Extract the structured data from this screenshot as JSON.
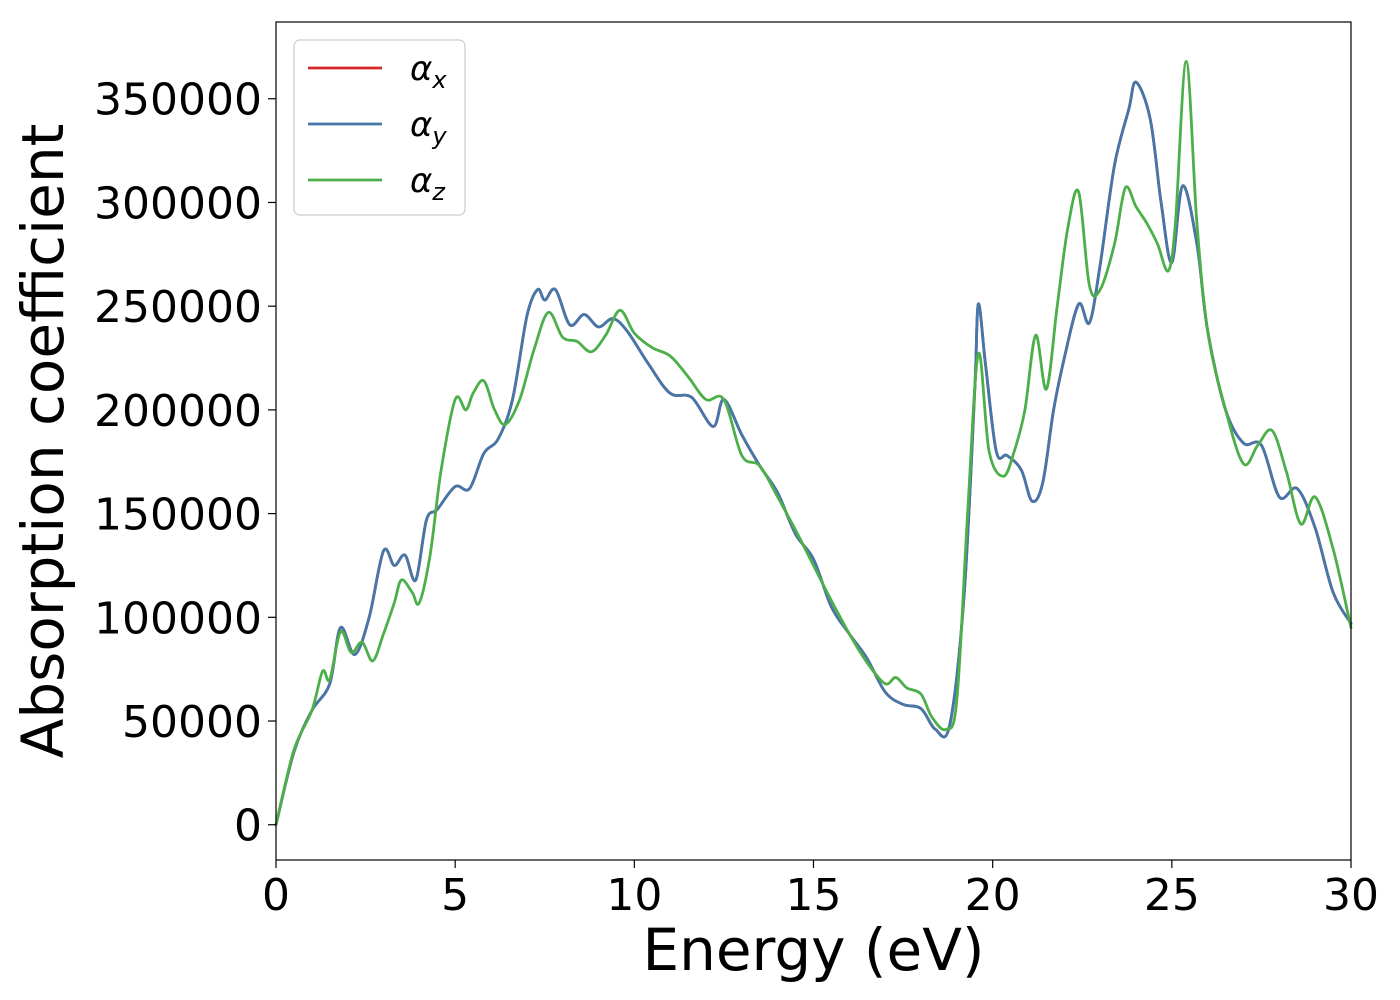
{
  "chart_data": {
    "type": "line",
    "title": "",
    "xlabel": "Energy (eV)",
    "ylabel": "Absorption coefficient",
    "xlim": [
      0,
      30
    ],
    "ylim": [
      -17000,
      387000
    ],
    "xticks": [
      0,
      5,
      10,
      15,
      20,
      25,
      30
    ],
    "yticks": [
      0,
      50000,
      100000,
      150000,
      200000,
      250000,
      300000,
      350000
    ],
    "grid": false,
    "legend": "top-left",
    "series": [
      {
        "name": "αx",
        "symbol": "α",
        "sub": "x",
        "color": "#d62728",
        "x": [
          0,
          0.5,
          1.0,
          1.5,
          1.8,
          2.2,
          2.6,
          3.0,
          3.3,
          3.6,
          3.9,
          4.2,
          4.5,
          5.0,
          5.4,
          5.8,
          6.2,
          6.6,
          7.0,
          7.3,
          7.5,
          7.8,
          8.2,
          8.6,
          9.0,
          9.4,
          9.8,
          10.4,
          11.0,
          11.6,
          12.2,
          12.5,
          13.0,
          13.5,
          14.0,
          14.5,
          15.0,
          15.5,
          16.0,
          16.5,
          17.0,
          17.5,
          18.0,
          18.4,
          18.8,
          19.2,
          19.5,
          19.6,
          19.8,
          20.1,
          20.4,
          20.8,
          21.1,
          21.4,
          21.7,
          22.0,
          22.4,
          22.7,
          23.0,
          23.4,
          23.8,
          24.0,
          24.4,
          24.7,
          25.0,
          25.3,
          25.7,
          26.0,
          26.5,
          27.0,
          27.5,
          28.0,
          28.5,
          29.0,
          29.5,
          30.0
        ],
        "values": [
          0,
          35000,
          55000,
          68000,
          95000,
          82000,
          100000,
          132000,
          125000,
          130000,
          118000,
          147000,
          152000,
          163000,
          162000,
          179000,
          186000,
          205000,
          245000,
          258000,
          253000,
          258000,
          241000,
          246000,
          240000,
          244000,
          238000,
          222000,
          208000,
          206000,
          192000,
          205000,
          188000,
          173000,
          160000,
          140000,
          128000,
          105000,
          92000,
          80000,
          64000,
          58000,
          56000,
          46000,
          48000,
          110000,
          210000,
          251000,
          222000,
          180000,
          178000,
          171000,
          156000,
          165000,
          200000,
          225000,
          251000,
          242000,
          270000,
          318000,
          345000,
          358000,
          340000,
          300000,
          271000,
          308000,
          280000,
          238000,
          200000,
          184000,
          183000,
          158000,
          162000,
          143000,
          112000,
          97000
        ]
      },
      {
        "name": "αy",
        "symbol": "α",
        "sub": "y",
        "color": "#4477aa",
        "x": [
          0,
          0.5,
          1.0,
          1.5,
          1.8,
          2.2,
          2.6,
          3.0,
          3.3,
          3.6,
          3.9,
          4.2,
          4.5,
          5.0,
          5.4,
          5.8,
          6.2,
          6.6,
          7.0,
          7.3,
          7.5,
          7.8,
          8.2,
          8.6,
          9.0,
          9.4,
          9.8,
          10.4,
          11.0,
          11.6,
          12.2,
          12.5,
          13.0,
          13.5,
          14.0,
          14.5,
          15.0,
          15.5,
          16.0,
          16.5,
          17.0,
          17.5,
          18.0,
          18.4,
          18.8,
          19.2,
          19.5,
          19.6,
          19.8,
          20.1,
          20.4,
          20.8,
          21.1,
          21.4,
          21.7,
          22.0,
          22.4,
          22.7,
          23.0,
          23.4,
          23.8,
          24.0,
          24.4,
          24.7,
          25.0,
          25.3,
          25.7,
          26.0,
          26.5,
          27.0,
          27.5,
          28.0,
          28.5,
          29.0,
          29.5,
          30.0
        ],
        "values": [
          0,
          35000,
          55000,
          68000,
          95000,
          82000,
          100000,
          132000,
          125000,
          130000,
          118000,
          147000,
          152000,
          163000,
          162000,
          179000,
          186000,
          205000,
          245000,
          258000,
          253000,
          258000,
          241000,
          246000,
          240000,
          244000,
          238000,
          222000,
          208000,
          206000,
          192000,
          205000,
          188000,
          173000,
          160000,
          140000,
          128000,
          105000,
          92000,
          80000,
          64000,
          58000,
          56000,
          46000,
          48000,
          110000,
          210000,
          251000,
          222000,
          180000,
          178000,
          171000,
          156000,
          165000,
          200000,
          225000,
          251000,
          242000,
          270000,
          318000,
          345000,
          358000,
          340000,
          300000,
          271000,
          308000,
          280000,
          238000,
          200000,
          184000,
          183000,
          158000,
          162000,
          143000,
          112000,
          97000
        ]
      },
      {
        "name": "αz",
        "symbol": "α",
        "sub": "z",
        "color": "#4daf4a",
        "x": [
          0,
          0.5,
          1.0,
          1.3,
          1.5,
          1.8,
          2.1,
          2.4,
          2.7,
          3.0,
          3.3,
          3.5,
          3.8,
          4.0,
          4.3,
          4.6,
          5.0,
          5.3,
          5.5,
          5.8,
          6.1,
          6.4,
          6.8,
          7.2,
          7.6,
          8.0,
          8.4,
          8.8,
          9.2,
          9.6,
          10.0,
          10.5,
          11.0,
          11.5,
          12.0,
          12.5,
          13.0,
          13.5,
          14.0,
          14.5,
          15.0,
          15.5,
          16.0,
          16.5,
          17.0,
          17.3,
          17.6,
          18.0,
          18.3,
          18.7,
          19.0,
          19.3,
          19.6,
          19.9,
          20.3,
          20.6,
          20.9,
          21.2,
          21.5,
          21.8,
          22.1,
          22.4,
          22.7,
          23.0,
          23.4,
          23.7,
          24.0,
          24.3,
          24.6,
          24.9,
          25.1,
          25.4,
          25.7,
          26.0,
          26.5,
          27.0,
          27.4,
          27.8,
          28.2,
          28.6,
          29.0,
          29.5,
          30.0
        ],
        "values": [
          0,
          36000,
          55000,
          74000,
          70000,
          93000,
          83000,
          88000,
          79000,
          92000,
          107000,
          118000,
          112000,
          107000,
          130000,
          170000,
          205000,
          200000,
          208000,
          214000,
          200000,
          193000,
          205000,
          229000,
          247000,
          235000,
          233000,
          228000,
          236000,
          248000,
          237000,
          230000,
          226000,
          216000,
          205000,
          205000,
          178000,
          173000,
          158000,
          142000,
          125000,
          108000,
          92000,
          78000,
          68000,
          71000,
          66000,
          63000,
          52000,
          46000,
          60000,
          150000,
          227000,
          180000,
          168000,
          180000,
          200000,
          236000,
          210000,
          250000,
          288000,
          305000,
          260000,
          258000,
          280000,
          307000,
          298000,
          290000,
          280000,
          267000,
          290000,
          368000,
          290000,
          238000,
          200000,
          174000,
          183000,
          190000,
          170000,
          145000,
          158000,
          133000,
          95000
        ]
      }
    ]
  }
}
